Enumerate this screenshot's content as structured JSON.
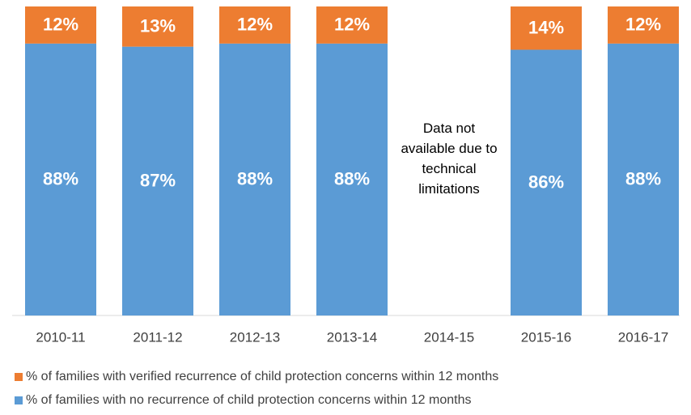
{
  "chart_data": {
    "type": "bar",
    "stacked": true,
    "categories": [
      "2010-11",
      "2011-12",
      "2012-13",
      "2013-14",
      "2014-15",
      "2015-16",
      "2016-17"
    ],
    "series": [
      {
        "name": "% of families with verified recurrence of child protection concerns within 12 months",
        "color": "#ed7d31",
        "values": [
          12,
          13,
          12,
          12,
          null,
          14,
          12
        ],
        "value_labels": [
          "12%",
          "13%",
          "12%",
          "12%",
          null,
          "14%",
          "12%"
        ]
      },
      {
        "name": "% of families with no recurrence of child protection concerns within 12 months",
        "color": "#5b9bd5",
        "values": [
          88,
          87,
          88,
          88,
          null,
          86,
          88
        ],
        "value_labels": [
          "88%",
          "87%",
          "88%",
          "88%",
          null,
          "86%",
          "88%"
        ]
      }
    ],
    "ylim": [
      0,
      100
    ],
    "annotations": [
      "Data not available due to technical limitations"
    ]
  }
}
